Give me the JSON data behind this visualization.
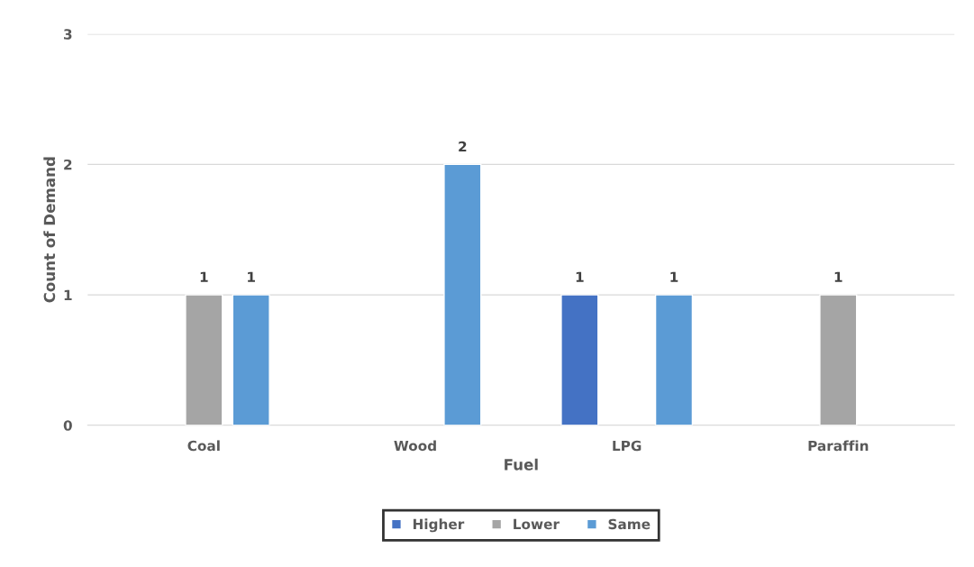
{
  "chart_data": {
    "type": "bar",
    "xlabel": "Fuel",
    "ylabel": "Count of Demand",
    "categories": [
      "Coal",
      "Wood",
      "LPG",
      "Paraffin"
    ],
    "series": [
      {
        "name": "Higher",
        "color": "#4472c4",
        "values": [
          null,
          null,
          1,
          null
        ]
      },
      {
        "name": "Lower",
        "color": "#a5a5a5",
        "values": [
          1,
          null,
          null,
          1
        ]
      },
      {
        "name": "Same",
        "color": "#5b9bd5",
        "values": [
          1,
          2,
          1,
          null
        ]
      }
    ],
    "ylim": [
      0,
      3
    ],
    "yticks": [
      0,
      1,
      2,
      3
    ],
    "grid": "y",
    "legend": "bottom",
    "data_labels": true
  }
}
